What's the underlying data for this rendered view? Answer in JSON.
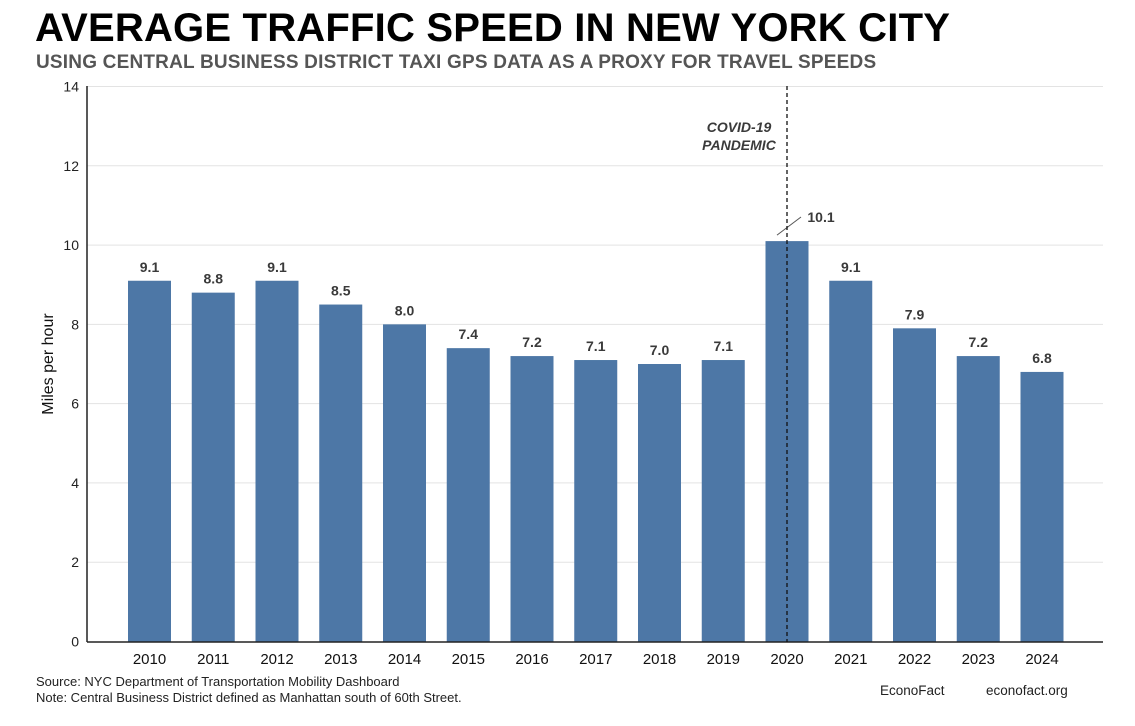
{
  "header": {
    "title": "AVERAGE TRAFFIC SPEED IN NEW YORK CITY",
    "subtitle": "USING CENTRAL BUSINESS DISTRICT TAXI GPS DATA AS A PROXY FOR TRAVEL SPEEDS"
  },
  "footer": {
    "source": "Source: NYC Department of Transportation Mobility Dashboard",
    "note": "Note: Central Business District defined as Manhattan south of 60th Street.",
    "brand": "EconoFact",
    "url": "econofact.org"
  },
  "colors": {
    "bar": "#4d77a6",
    "grid": "#e3e3e3",
    "label": "#3a3a3a"
  },
  "chart_data": {
    "type": "bar",
    "title": "AVERAGE TRAFFIC SPEED IN NEW YORK CITY",
    "subtitle": "USING CENTRAL BUSINESS DISTRICT TAXI GPS DATA AS A PROXY FOR TRAVEL SPEEDS",
    "xlabel": "",
    "ylabel": "Miles per hour",
    "ylim": [
      0,
      14
    ],
    "yticks": [
      0,
      2,
      4,
      6,
      8,
      10,
      12,
      14
    ],
    "grid": true,
    "categories": [
      "2010",
      "2011",
      "2012",
      "2013",
      "2014",
      "2015",
      "2016",
      "2017",
      "2018",
      "2019",
      "2020",
      "2021",
      "2022",
      "2023",
      "2024"
    ],
    "values": [
      9.1,
      8.8,
      9.1,
      8.5,
      8.0,
      7.4,
      7.2,
      7.1,
      7.0,
      7.1,
      10.1,
      9.1,
      7.9,
      7.2,
      6.8
    ],
    "data_labels": [
      "9.1",
      "8.8",
      "9.1",
      "8.5",
      "8.0",
      "7.4",
      "7.2",
      "7.1",
      "7.0",
      "7.1",
      "10.1",
      "9.1",
      "7.9",
      "7.2",
      "6.8"
    ],
    "annotation": {
      "lines": [
        "COVID-19",
        "PANDEMIC"
      ],
      "at_category": "2020"
    }
  }
}
